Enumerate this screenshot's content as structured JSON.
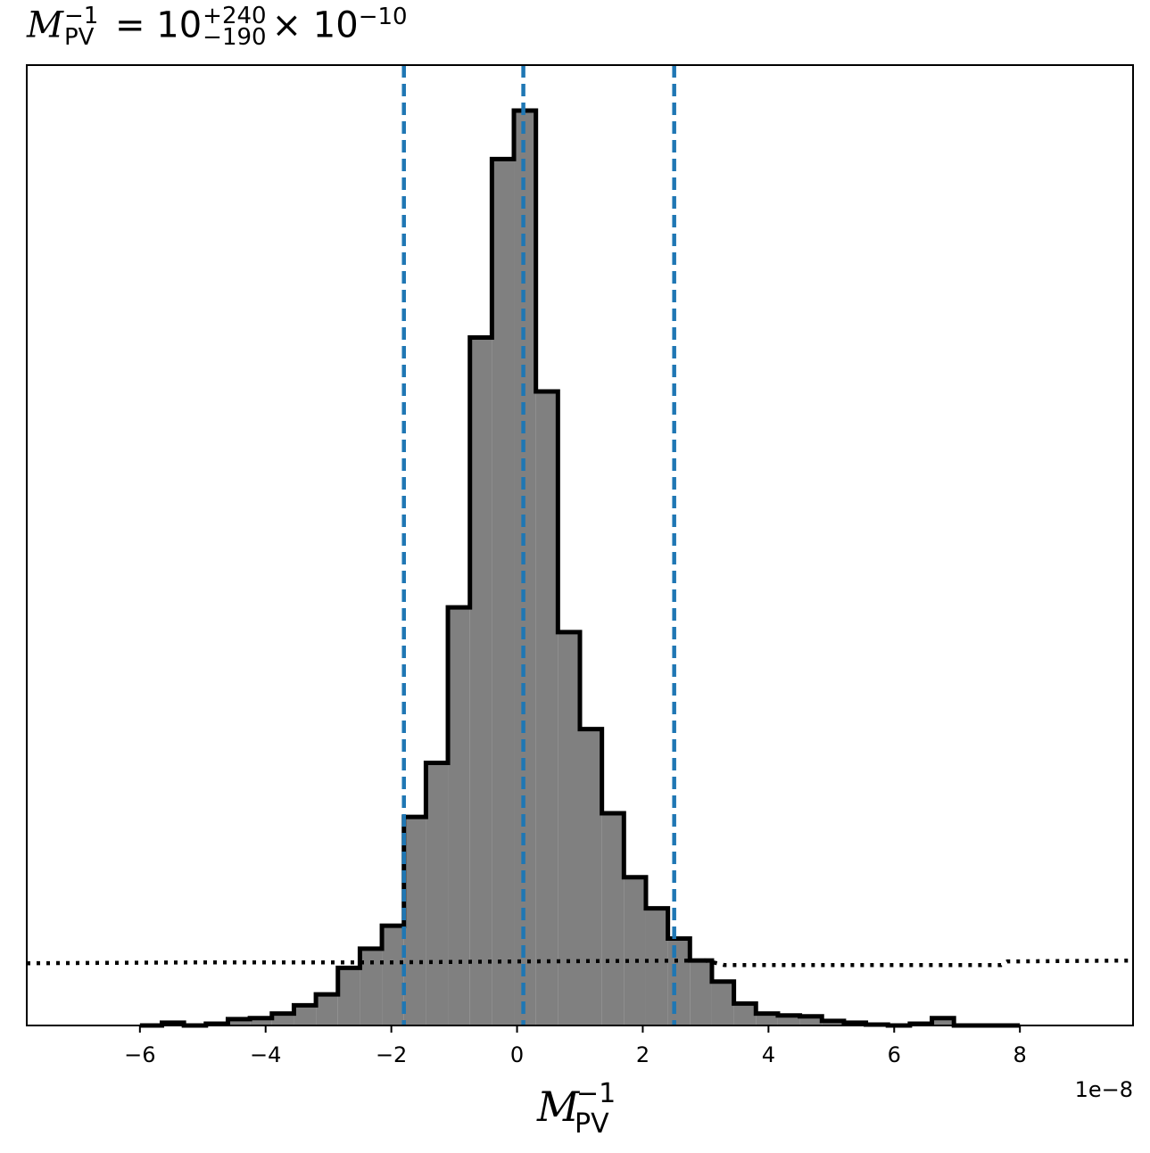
{
  "chart_data": {
    "type": "histogram",
    "title": {
      "symbol": "M",
      "subscript": "PV",
      "superscript": "−1",
      "equals": "= 10",
      "upper": "+240",
      "lower": "−190",
      "suffix": "× 10",
      "suffix_exp": "−10"
    },
    "xlabel": {
      "symbol": "M",
      "subscript": "PV",
      "superscript": "−1"
    },
    "ylabel": "",
    "x_offset_label": "1e−8",
    "xlim": [
      -7.8,
      9.8
    ],
    "ylim": [
      0,
      1.0
    ],
    "xticks": [
      -6,
      -4,
      -2,
      0,
      2,
      4,
      6,
      8
    ],
    "xtick_labels": [
      "−6",
      "−4",
      "−2",
      "0",
      "2",
      "4",
      "6",
      "8"
    ],
    "grid": false,
    "bins": {
      "edges": [
        -6.0,
        -5.65,
        -5.3,
        -4.95,
        -4.6,
        -4.25,
        -3.9,
        -3.55,
        -3.2,
        -2.85,
        -2.5,
        -2.15,
        -1.8,
        -1.45,
        -1.1,
        -0.75,
        -0.4,
        -0.05,
        0.3,
        0.65,
        1.0,
        1.35,
        1.7,
        2.05,
        2.4,
        2.75,
        3.1,
        3.45,
        3.8,
        4.15,
        4.5,
        4.85,
        5.2,
        5.55,
        5.9,
        6.25,
        6.6,
        6.95,
        7.3,
        7.65,
        8.0
      ],
      "counts": [
        0.0,
        0.003,
        0.0,
        0.002,
        0.007,
        0.008,
        0.013,
        0.022,
        0.034,
        0.063,
        0.084,
        0.109,
        0.228,
        0.287,
        0.457,
        0.752,
        0.947,
        1.0,
        0.693,
        0.43,
        0.324,
        0.232,
        0.162,
        0.128,
        0.095,
        0.071,
        0.048,
        0.024,
        0.013,
        0.011,
        0.01,
        0.005,
        0.003,
        0.001,
        0.0,
        0.002,
        0.008,
        0.0,
        0.0,
        0.0
      ]
    },
    "hist_fill": "#808080",
    "hist_edge": "#000000",
    "quantile_lines": [
      {
        "x": -1.8,
        "color": "#1f77b4"
      },
      {
        "x": 0.1,
        "color": "#1f77b4"
      },
      {
        "x": 2.5,
        "color": "#1f77b4"
      }
    ],
    "prior_line": {
      "style": "dotted",
      "color": "#000000",
      "x": [
        -7.8,
        -5.0,
        -2.0,
        0.0,
        3.0,
        3.3,
        7.7,
        7.8,
        9.8
      ],
      "y": [
        0.068,
        0.069,
        0.069,
        0.07,
        0.071,
        0.066,
        0.066,
        0.07,
        0.071
      ]
    }
  }
}
